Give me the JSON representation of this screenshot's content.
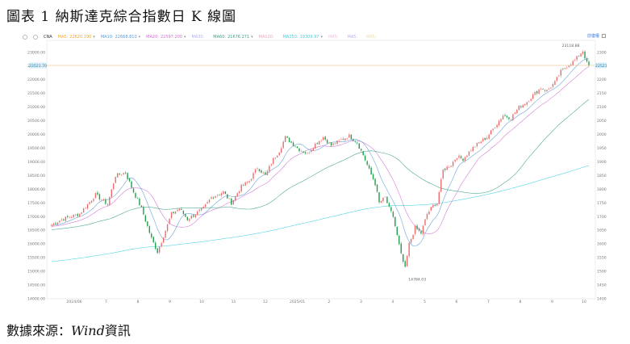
{
  "title": "圖表 1 納斯達克綜合指數日 K 線圖",
  "source_prefix": "數據來源：",
  "source_name": "Wind",
  "source_suffix": "資訊",
  "legend": {
    "main_label": "CNA",
    "items": [
      {
        "label": "MA5:",
        "value": "22620.190",
        "color": "#f5a623"
      },
      {
        "label": "MA10:",
        "value": "22668.810",
        "color": "#5b9bd5"
      },
      {
        "label": "MA20:",
        "value": "22597.200",
        "color": "#d070d0"
      },
      {
        "label": "MA30:",
        "value": "",
        "color": "#b0b0f0"
      },
      {
        "label": "MA60:",
        "value": "21676.271",
        "color": "#3aa08a"
      },
      {
        "label": "MA120:",
        "value": "",
        "color": "#f0a0c0"
      },
      {
        "label": "MA250:",
        "value": "19309.97",
        "color": "#40d0e0"
      },
      {
        "label": "MA5:",
        "value": "",
        "color": "#f0c0e0"
      },
      {
        "label": "MA5:",
        "value": "",
        "color": "#c0b0f0"
      },
      {
        "label": "MA5:",
        "value": "",
        "color": "#f0e0a0"
      }
    ],
    "right_label": "前復權"
  },
  "chart_data": {
    "type": "candlestick",
    "ylim": [
      14000,
      23200
    ],
    "yticks": [
      14000,
      14500,
      15000,
      15500,
      16000,
      16500,
      17000,
      17500,
      18000,
      18500,
      19000,
      19500,
      20000,
      20500,
      21000,
      21500,
      22000,
      22500,
      23000
    ],
    "x_ticks": [
      "2024/06",
      "7",
      "8",
      "9",
      "10",
      "11",
      "12",
      "2025/01",
      "2",
      "3",
      "4",
      "5",
      "6",
      "7",
      "8",
      "9",
      "10"
    ],
    "last_price": "22521.70",
    "annotations": [
      {
        "text": "23118.88",
        "kind": "max"
      },
      {
        "text": "14784.03",
        "kind": "min"
      }
    ],
    "close_path": [
      [
        0,
        16700
      ],
      [
        5,
        16900
      ],
      [
        14,
        17100
      ],
      [
        22,
        17800
      ],
      [
        28,
        17450
      ],
      [
        32,
        18500
      ],
      [
        37,
        18600
      ],
      [
        41,
        17900
      ],
      [
        45,
        17300
      ],
      [
        50,
        16200
      ],
      [
        53,
        15708
      ],
      [
        56,
        16300
      ],
      [
        60,
        17100
      ],
      [
        64,
        17300
      ],
      [
        68,
        16900
      ],
      [
        72,
        17100
      ],
      [
        76,
        17300
      ],
      [
        80,
        17700
      ],
      [
        86,
        17900
      ],
      [
        90,
        17500
      ],
      [
        95,
        18100
      ],
      [
        99,
        18300
      ],
      [
        103,
        18800
      ],
      [
        107,
        18500
      ],
      [
        111,
        19100
      ],
      [
        114,
        19400
      ],
      [
        117,
        19900
      ],
      [
        120,
        19700
      ],
      [
        124,
        19450
      ],
      [
        128,
        19300
      ],
      [
        132,
        19650
      ],
      [
        136,
        19900
      ],
      [
        140,
        19600
      ],
      [
        145,
        19800
      ],
      [
        149,
        19950
      ],
      [
        153,
        19700
      ],
      [
        156,
        19250
      ],
      [
        159,
        18700
      ],
      [
        162,
        18200
      ],
      [
        164,
        17500
      ],
      [
        167,
        17700
      ],
      [
        169,
        17300
      ],
      [
        171,
        17000
      ],
      [
        173,
        16300
      ],
      [
        175,
        15600
      ],
      [
        177,
        15100
      ],
      [
        179,
        16000
      ],
      [
        182,
        16600
      ],
      [
        185,
        16400
      ],
      [
        188,
        17100
      ],
      [
        191,
        17400
      ],
      [
        193,
        17500
      ],
      [
        196,
        18700
      ],
      [
        200,
        18900
      ],
      [
        203,
        19200
      ],
      [
        206,
        19100
      ],
      [
        210,
        19450
      ],
      [
        214,
        19700
      ],
      [
        218,
        19900
      ],
      [
        222,
        20300
      ],
      [
        226,
        20700
      ],
      [
        230,
        20600
      ],
      [
        234,
        21000
      ],
      [
        238,
        21200
      ],
      [
        242,
        21500
      ],
      [
        245,
        21700
      ],
      [
        248,
        21600
      ],
      [
        252,
        21900
      ],
      [
        255,
        22300
      ],
      [
        258,
        22500
      ],
      [
        262,
        22700
      ],
      [
        264,
        22900
      ],
      [
        266,
        23050
      ],
      [
        268,
        22600
      ],
      [
        269,
        22521.7
      ]
    ],
    "ma_series": [
      {
        "name": "MA20",
        "color": "#d070d0",
        "window": 20
      },
      {
        "name": "MA10",
        "color": "#5b9bd5",
        "window": 10
      },
      {
        "name": "MA60",
        "color": "#3aa08a",
        "window": 60
      },
      {
        "name": "MA250",
        "color": "#40d0e0",
        "window": 250
      }
    ],
    "num_candles": 270,
    "up_color": "#eb6b6b",
    "down_color": "#1e9c4a"
  }
}
